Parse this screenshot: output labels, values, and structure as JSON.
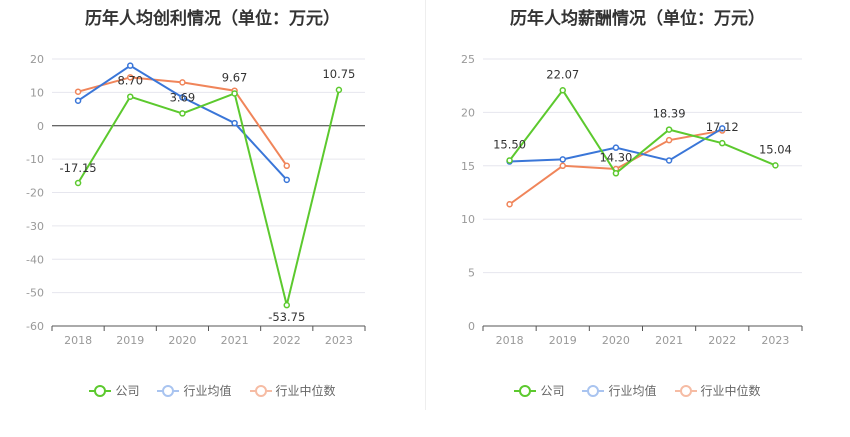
{
  "colors": {
    "company": "#5cc92e",
    "industry_avg": "#3a76d8",
    "industry_median": "#f0855a"
  },
  "legend": {
    "company": "公司",
    "industry_avg": "行业均值",
    "industry_median": "行业中位数"
  },
  "charts": [
    {
      "title": "历年人均创利情况（单位：万元）",
      "yticks": [
        "20",
        "10",
        "0",
        "-10",
        "-20",
        "-30",
        "-40",
        "-50",
        "-60"
      ],
      "xticks": [
        "2018",
        "2019",
        "2020",
        "2021",
        "2022",
        "2023"
      ]
    },
    {
      "title": "历年人均薪酬情况（单位：万元）",
      "yticks": [
        "25",
        "20",
        "15",
        "10",
        "5",
        "0"
      ],
      "xticks": [
        "2018",
        "2019",
        "2020",
        "2021",
        "2022",
        "2023"
      ]
    }
  ],
  "chart_data": [
    {
      "type": "line",
      "title": "历年人均创利情况（单位：万元）",
      "x": [
        "2018",
        "2019",
        "2020",
        "2021",
        "2022",
        "2023"
      ],
      "ylim": [
        -60,
        20
      ],
      "grid": true,
      "legend_position": "bottom",
      "series": [
        {
          "name": "公司",
          "key": "company",
          "values": [
            -17.15,
            8.7,
            3.69,
            9.67,
            -53.75,
            10.75
          ],
          "labels": [
            "-17.15",
            "8.70",
            "3.69",
            "9.67",
            "-53.75",
            "10.75"
          ]
        },
        {
          "name": "行业均值",
          "key": "industry_avg",
          "values": [
            7.5,
            18,
            8.5,
            0.8,
            -16.2,
            null
          ]
        },
        {
          "name": "行业中位数",
          "key": "industry_median",
          "values": [
            10.2,
            14.5,
            13,
            10.5,
            -12,
            null
          ]
        }
      ]
    },
    {
      "type": "line",
      "title": "历年人均薪酬情况（单位：万元）",
      "x": [
        "2018",
        "2019",
        "2020",
        "2021",
        "2022",
        "2023"
      ],
      "ylim": [
        0,
        25
      ],
      "grid": true,
      "legend_position": "bottom",
      "series": [
        {
          "name": "公司",
          "key": "company",
          "values": [
            15.5,
            22.07,
            14.3,
            18.39,
            17.12,
            15.04
          ],
          "labels": [
            "15.50",
            "22.07",
            "14.30",
            "18.39",
            "17.12",
            "15.04"
          ]
        },
        {
          "name": "行业均值",
          "key": "industry_avg",
          "values": [
            15.4,
            15.6,
            16.7,
            15.5,
            18.5,
            null
          ]
        },
        {
          "name": "行业中位数",
          "key": "industry_median",
          "values": [
            11.4,
            15,
            14.7,
            17.4,
            18.3,
            null
          ]
        }
      ]
    }
  ]
}
